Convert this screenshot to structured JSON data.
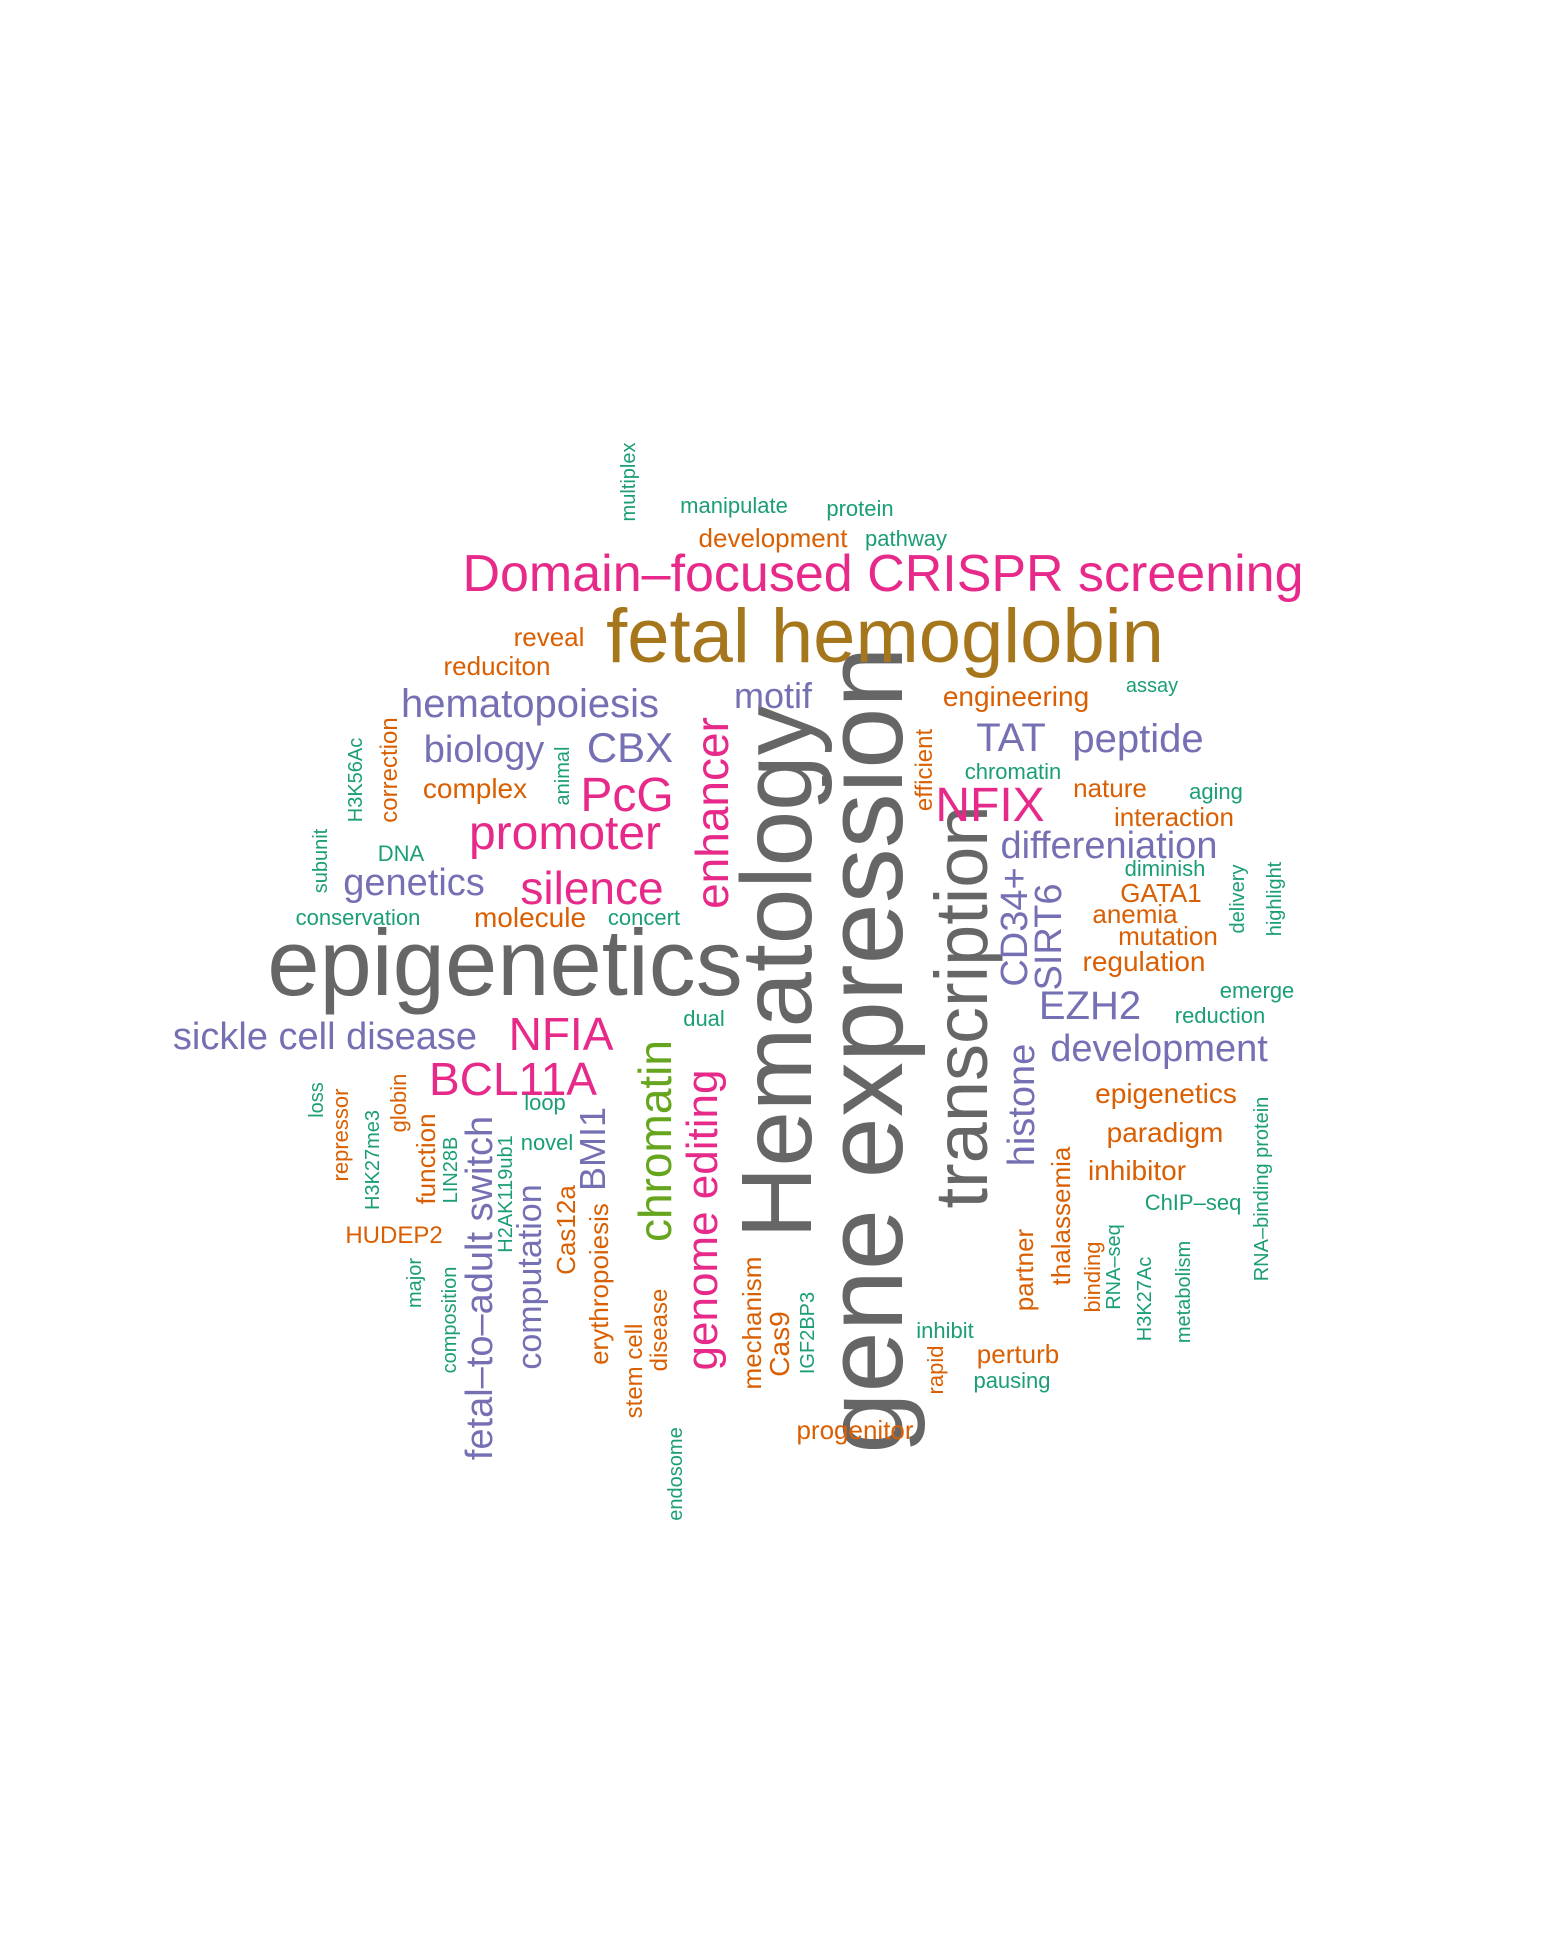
{
  "palette": {
    "gray": "#666666",
    "magenta": "#e7298a",
    "olive": "#a6761d",
    "purple": "#7570b3",
    "orange": "#d95f02",
    "teal": "#1b9e77",
    "green": "#66a61e"
  },
  "words": [
    {
      "id": "epigenetics-large",
      "text": "epigenetics",
      "color": "gray"
    },
    {
      "id": "gene-expression",
      "text": "gene expression",
      "color": "gray"
    },
    {
      "id": "hematology",
      "text": "Hematology",
      "color": "gray"
    },
    {
      "id": "transcription",
      "text": "transcription",
      "color": "gray"
    },
    {
      "id": "fetal-hemoglobin",
      "text": "fetal hemoglobin",
      "color": "olive"
    },
    {
      "id": "domain-focused-crispr-screening",
      "text": "Domain–focused CRISPR screening",
      "color": "magenta"
    },
    {
      "id": "promoter",
      "text": "promoter",
      "color": "magenta"
    },
    {
      "id": "pcg",
      "text": "PcG",
      "color": "magenta"
    },
    {
      "id": "silence",
      "text": "silence",
      "color": "magenta"
    },
    {
      "id": "enhancer",
      "text": "enhancer",
      "color": "magenta"
    },
    {
      "id": "nfia",
      "text": "NFIA",
      "color": "magenta"
    },
    {
      "id": "bcl11a",
      "text": "BCL11A",
      "color": "magenta"
    },
    {
      "id": "nfix",
      "text": "NFIX",
      "color": "magenta"
    },
    {
      "id": "genome-editing",
      "text": "genome editing",
      "color": "magenta"
    },
    {
      "id": "chromatin-large",
      "text": "chromatin",
      "color": "green"
    },
    {
      "id": "hematopoiesis",
      "text": "hematopoiesis",
      "color": "purple"
    },
    {
      "id": "motif",
      "text": "motif",
      "color": "purple"
    },
    {
      "id": "biology",
      "text": "biology",
      "color": "purple"
    },
    {
      "id": "cbx",
      "text": "CBX",
      "color": "purple"
    },
    {
      "id": "genetics",
      "text": "genetics",
      "color": "purple"
    },
    {
      "id": "tat",
      "text": "TAT",
      "color": "purple"
    },
    {
      "id": "peptide",
      "text": "peptide",
      "color": "purple"
    },
    {
      "id": "differeniation",
      "text": "differeniation",
      "color": "purple"
    },
    {
      "id": "cd34",
      "text": "CD34+",
      "color": "purple"
    },
    {
      "id": "sirt6",
      "text": "SIRT6",
      "color": "purple"
    },
    {
      "id": "ezh2",
      "text": "EZH2",
      "color": "purple"
    },
    {
      "id": "development-purple",
      "text": "development",
      "color": "purple"
    },
    {
      "id": "sickle-cell-disease",
      "text": "sickle cell disease",
      "color": "purple"
    },
    {
      "id": "histone",
      "text": "histone",
      "color": "purple"
    },
    {
      "id": "fetal-to-adult-switch",
      "text": "fetal–to–adult switch",
      "color": "purple"
    },
    {
      "id": "computation",
      "text": "computation",
      "color": "purple"
    },
    {
      "id": "bmi1",
      "text": "BMI1",
      "color": "purple"
    },
    {
      "id": "development-orange",
      "text": "development",
      "color": "orange"
    },
    {
      "id": "reveal",
      "text": "reveal",
      "color": "orange"
    },
    {
      "id": "reduciton",
      "text": "reduciton",
      "color": "orange"
    },
    {
      "id": "correction",
      "text": "correction",
      "color": "orange"
    },
    {
      "id": "complex",
      "text": "complex",
      "color": "orange"
    },
    {
      "id": "molecule",
      "text": "molecule",
      "color": "orange"
    },
    {
      "id": "engineering",
      "text": "engineering",
      "color": "orange"
    },
    {
      "id": "efficient",
      "text": "efficient",
      "color": "orange"
    },
    {
      "id": "nature",
      "text": "nature",
      "color": "orange"
    },
    {
      "id": "interaction",
      "text": "interaction",
      "color": "orange"
    },
    {
      "id": "gata1",
      "text": "GATA1",
      "color": "orange"
    },
    {
      "id": "anemia",
      "text": "anemia",
      "color": "orange"
    },
    {
      "id": "mutation",
      "text": "mutation",
      "color": "orange"
    },
    {
      "id": "regulation",
      "text": "regulation",
      "color": "orange"
    },
    {
      "id": "epigenetics-small",
      "text": "epigenetics",
      "color": "orange"
    },
    {
      "id": "paradigm",
      "text": "paradigm",
      "color": "orange"
    },
    {
      "id": "inhibitor",
      "text": "inhibitor",
      "color": "orange"
    },
    {
      "id": "repressor",
      "text": "repressor",
      "color": "orange"
    },
    {
      "id": "globin",
      "text": "globin",
      "color": "orange"
    },
    {
      "id": "function",
      "text": "function",
      "color": "orange"
    },
    {
      "id": "hudep2",
      "text": "HUDEP2",
      "color": "orange"
    },
    {
      "id": "cas12a",
      "text": "Cas12a",
      "color": "orange"
    },
    {
      "id": "erythropoiesis",
      "text": "erythropoiesis",
      "color": "orange"
    },
    {
      "id": "stem-cell",
      "text": "stem cell",
      "color": "orange"
    },
    {
      "id": "disease",
      "text": "disease",
      "color": "orange"
    },
    {
      "id": "mechanism",
      "text": "mechanism",
      "color": "orange"
    },
    {
      "id": "cas9",
      "text": "Cas9",
      "color": "orange"
    },
    {
      "id": "progenitor",
      "text": "progenitor",
      "color": "orange"
    },
    {
      "id": "rapid",
      "text": "rapid",
      "color": "orange"
    },
    {
      "id": "perturb",
      "text": "perturb",
      "color": "orange"
    },
    {
      "id": "partner",
      "text": "partner",
      "color": "orange"
    },
    {
      "id": "thalassemia",
      "text": "thalassemia",
      "color": "orange"
    },
    {
      "id": "binding",
      "text": "binding",
      "color": "orange"
    },
    {
      "id": "multiplex",
      "text": "multiplex",
      "color": "teal"
    },
    {
      "id": "manipulate",
      "text": "manipulate",
      "color": "teal"
    },
    {
      "id": "protein",
      "text": "protein",
      "color": "teal"
    },
    {
      "id": "pathway",
      "text": "pathway",
      "color": "teal"
    },
    {
      "id": "assay",
      "text": "assay",
      "color": "teal"
    },
    {
      "id": "chromatin-small",
      "text": "chromatin",
      "color": "teal"
    },
    {
      "id": "aging",
      "text": "aging",
      "color": "teal"
    },
    {
      "id": "h3k56ac",
      "text": "H3K56Ac",
      "color": "teal"
    },
    {
      "id": "animal",
      "text": "animal",
      "color": "teal"
    },
    {
      "id": "subunit",
      "text": "subunit",
      "color": "teal"
    },
    {
      "id": "dna",
      "text": "DNA",
      "color": "teal"
    },
    {
      "id": "conservation",
      "text": "conservation",
      "color": "teal"
    },
    {
      "id": "concert",
      "text": "concert",
      "color": "teal"
    },
    {
      "id": "diminish",
      "text": "diminish",
      "color": "teal"
    },
    {
      "id": "delivery",
      "text": "delivery",
      "color": "teal"
    },
    {
      "id": "highlight",
      "text": "highlight",
      "color": "teal"
    },
    {
      "id": "emerge",
      "text": "emerge",
      "color": "teal"
    },
    {
      "id": "reduction",
      "text": "reduction",
      "color": "teal"
    },
    {
      "id": "dual",
      "text": "dual",
      "color": "teal"
    },
    {
      "id": "loss",
      "text": "loss",
      "color": "teal"
    },
    {
      "id": "loop",
      "text": "loop",
      "color": "teal"
    },
    {
      "id": "novel",
      "text": "novel",
      "color": "teal"
    },
    {
      "id": "h3k27me3",
      "text": "H3K27me3",
      "color": "teal"
    },
    {
      "id": "lin28b",
      "text": "LIN28B",
      "color": "teal"
    },
    {
      "id": "h2ak119ub1",
      "text": "H2AK119ub1",
      "color": "teal"
    },
    {
      "id": "major",
      "text": "major",
      "color": "teal"
    },
    {
      "id": "composition",
      "text": "composition",
      "color": "teal"
    },
    {
      "id": "endosome",
      "text": "endosome",
      "color": "teal"
    },
    {
      "id": "igf2bp3",
      "text": "IGF2BP3",
      "color": "teal"
    },
    {
      "id": "inhibit",
      "text": "inhibit",
      "color": "teal"
    },
    {
      "id": "pausing",
      "text": "pausing",
      "color": "teal"
    },
    {
      "id": "rna-seq",
      "text": "RNA–seq",
      "color": "teal"
    },
    {
      "id": "h3k27ac",
      "text": "H3K27Ac",
      "color": "teal"
    },
    {
      "id": "metabolism",
      "text": "metabolism",
      "color": "teal"
    },
    {
      "id": "chip-seq",
      "text": "ChIP–seq",
      "color": "teal"
    },
    {
      "id": "rna-binding-protein",
      "text": "RNA–binding protein",
      "color": "teal"
    }
  ]
}
